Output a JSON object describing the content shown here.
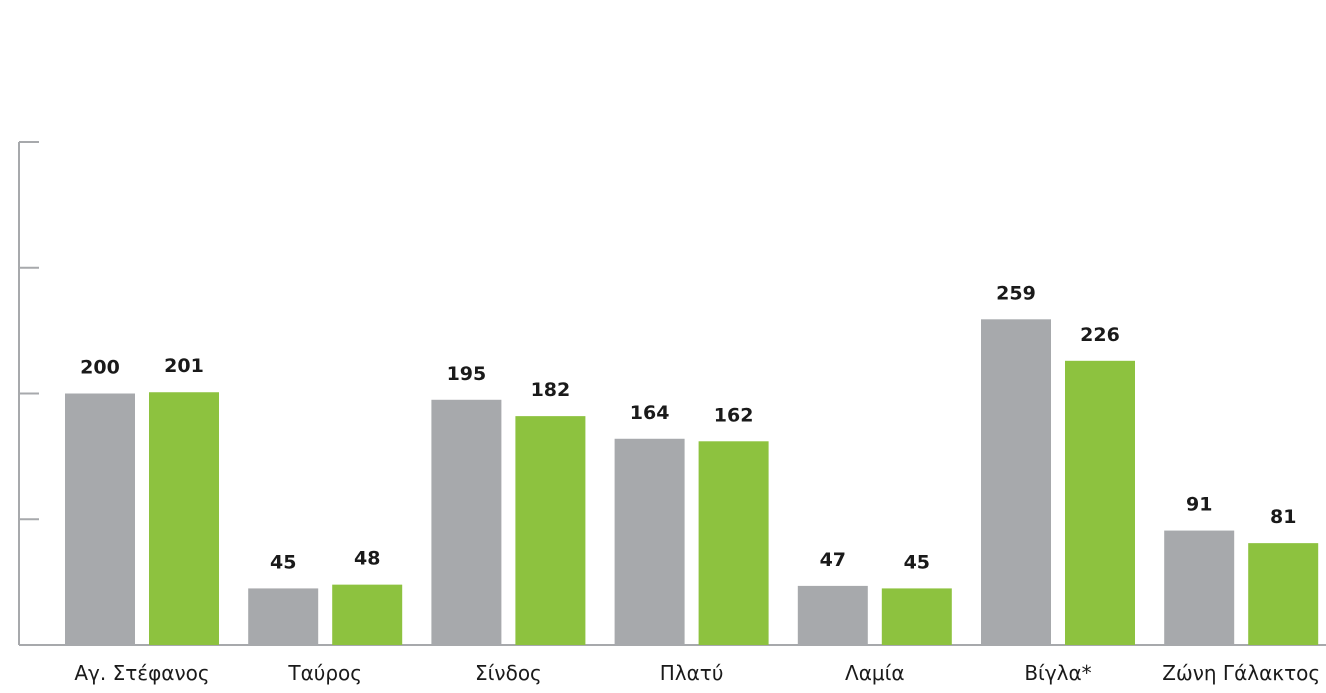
{
  "chart_data": {
    "type": "bar",
    "categories": [
      "Αγ. Στέφανος",
      "Ταύρος",
      "Σίνδος",
      "Πλατύ",
      "Λαμία",
      "Βίγλα*",
      "Ζώνη Γάλακτος"
    ],
    "series": [
      {
        "values": [
          200,
          45,
          195,
          164,
          47,
          259,
          91
        ],
        "color": "#a7a9ac"
      },
      {
        "values": [
          201,
          48,
          182,
          162,
          45,
          226,
          81
        ],
        "color": "#8dc23f"
      }
    ],
    "title": "",
    "xlabel": "",
    "ylabel": "",
    "ylim": [
      0,
      400
    ],
    "grid": false,
    "data_labels": true,
    "y_tick_labels_shown": false
  }
}
